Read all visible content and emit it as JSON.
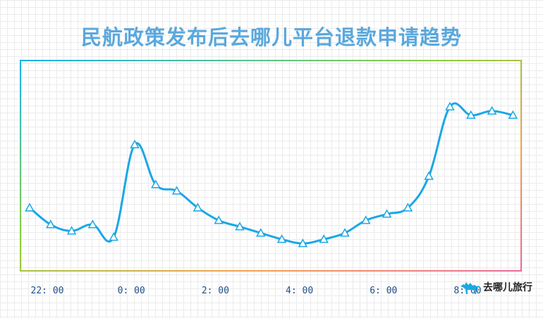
{
  "colors": {
    "line": "#1aa7e6",
    "title": "#5aa8dd",
    "tick": "#1f4f8a",
    "frame_gradient": [
      "#19b3ea",
      "#8ccf3f",
      "#f4a34b",
      "#ec6a9b"
    ]
  },
  "chart_data": {
    "type": "line",
    "title": "民航政策发布后去哪儿平台退款申请趋势",
    "xlabel": "",
    "ylabel": "",
    "x_ticks": [
      "22: 00",
      "0: 00",
      "2: 00",
      "4: 00",
      "6: 00",
      "8: 00"
    ],
    "x": [
      "22:00",
      "22:30",
      "23:00",
      "23:30",
      "00:00",
      "00:30",
      "01:00",
      "01:30",
      "02:00",
      "02:30",
      "03:00",
      "03:30",
      "04:00",
      "04:30",
      "05:00",
      "05:30",
      "06:00",
      "06:30",
      "07:00",
      "07:30",
      "08:00",
      "08:30",
      "09:00",
      "09:30"
    ],
    "series": [
      {
        "values": [
          30,
          22,
          19,
          22,
          16,
          60,
          41,
          38,
          30,
          24,
          21,
          18,
          15,
          13,
          15,
          18,
          24,
          27,
          30,
          45,
          78,
          74,
          76,
          74
        ],
        "marker": "triangle"
      }
    ],
    "ylim": [
      0,
      100
    ],
    "y_axis_visible": false,
    "grid": true,
    "legend": "none"
  },
  "brand": {
    "icon": "camel-icon",
    "label": "去哪儿旅行"
  }
}
